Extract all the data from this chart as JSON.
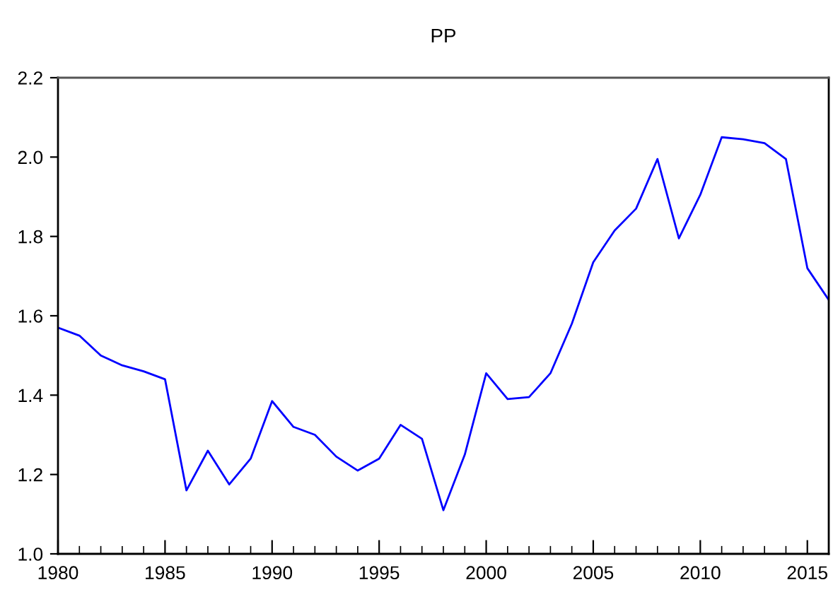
{
  "chart_data": {
    "type": "line",
    "title": "PP",
    "x": [
      1980,
      1981,
      1982,
      1983,
      1984,
      1985,
      1986,
      1987,
      1988,
      1989,
      1990,
      1991,
      1992,
      1993,
      1994,
      1995,
      1996,
      1997,
      1998,
      1999,
      2000,
      2001,
      2002,
      2003,
      2004,
      2005,
      2006,
      2007,
      2008,
      2009,
      2010,
      2011,
      2012,
      2013,
      2014,
      2015,
      2016
    ],
    "series": [
      {
        "color": "#0000ff",
        "values": [
          1.57,
          1.55,
          1.5,
          1.475,
          1.46,
          1.44,
          1.16,
          1.26,
          1.175,
          1.24,
          1.385,
          1.32,
          1.3,
          1.245,
          1.21,
          1.24,
          1.325,
          1.29,
          1.11,
          1.25,
          1.455,
          1.39,
          1.395,
          1.455,
          1.58,
          1.735,
          1.815,
          1.87,
          1.995,
          1.795,
          1.905,
          2.05,
          2.045,
          2.035,
          1.995,
          1.72,
          1.64
        ]
      }
    ],
    "xlim": [
      1980,
      2016
    ],
    "xticks": [
      1980,
      1985,
      1990,
      1995,
      2000,
      2005,
      2010,
      2015
    ],
    "ylim": [
      1.0,
      2.2
    ],
    "yticks": [
      {
        "value": 1.0,
        "label": "1.0"
      },
      {
        "value": 1.2,
        "label": "1.2"
      },
      {
        "value": 1.4,
        "label": "1.4"
      },
      {
        "value": 1.6,
        "label": "1.6"
      },
      {
        "value": 1.8,
        "label": "1.8"
      },
      {
        "value": 2.0,
        "label": "2.0"
      },
      {
        "value": 2.2,
        "label": "2.2"
      }
    ],
    "grid": false,
    "legend": false,
    "marker": "none",
    "line_style": "solid"
  }
}
